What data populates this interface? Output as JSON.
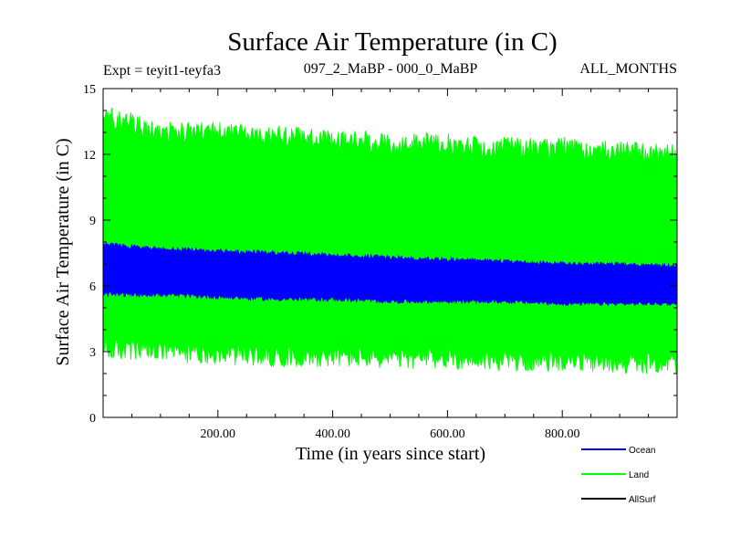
{
  "chart_data": {
    "type": "line",
    "title": "Surface Air Temperature (in C)",
    "subtitle_left": "Expt = teyit1-teyfa3",
    "subtitle_center": "097_2_MaBP - 000_0_MaBP",
    "subtitle_right": "ALL_MONTHS",
    "xlabel": "Time (in years since start)",
    "ylabel": "Surface Air Temperature (in C)",
    "xlim": [
      0,
      1000
    ],
    "ylim": [
      0,
      15
    ],
    "xticks": [
      200,
      400,
      600,
      800
    ],
    "xtick_labels": [
      "200.00",
      "400.00",
      "600.00",
      "800.00"
    ],
    "yticks": [
      0,
      3,
      6,
      9,
      12,
      15
    ],
    "ytick_labels": [
      "0",
      "3",
      "6",
      "9",
      "12",
      "15"
    ],
    "series": [
      {
        "name": "Land",
        "color": "#00ff00",
        "envelope_x": [
          0,
          100,
          200,
          300,
          400,
          500,
          600,
          700,
          800,
          900,
          1000
        ],
        "envelope_min": [
          2.6,
          2.5,
          2.4,
          2.3,
          2.3,
          2.2,
          2.2,
          2.1,
          2.1,
          2.0,
          2.0
        ],
        "envelope_max": [
          14.3,
          13.5,
          13.5,
          13.3,
          13.2,
          13.0,
          13.0,
          12.8,
          12.8,
          12.6,
          12.5
        ]
      },
      {
        "name": "Ocean",
        "color": "#0000ff",
        "envelope_x": [
          0,
          100,
          200,
          300,
          400,
          500,
          600,
          700,
          800,
          900,
          1000
        ],
        "envelope_min": [
          5.5,
          5.5,
          5.4,
          5.3,
          5.3,
          5.2,
          5.2,
          5.2,
          5.1,
          5.1,
          5.1
        ],
        "envelope_max": [
          8.0,
          7.8,
          7.7,
          7.6,
          7.5,
          7.4,
          7.3,
          7.2,
          7.1,
          7.1,
          7.0
        ]
      },
      {
        "name": "AllSurf",
        "color": "#000000",
        "envelope_x": [],
        "envelope_min": [],
        "envelope_max": []
      }
    ],
    "legend": [
      "Ocean",
      "Land",
      "AllSurf"
    ],
    "legend_placement": "bottom-right"
  }
}
